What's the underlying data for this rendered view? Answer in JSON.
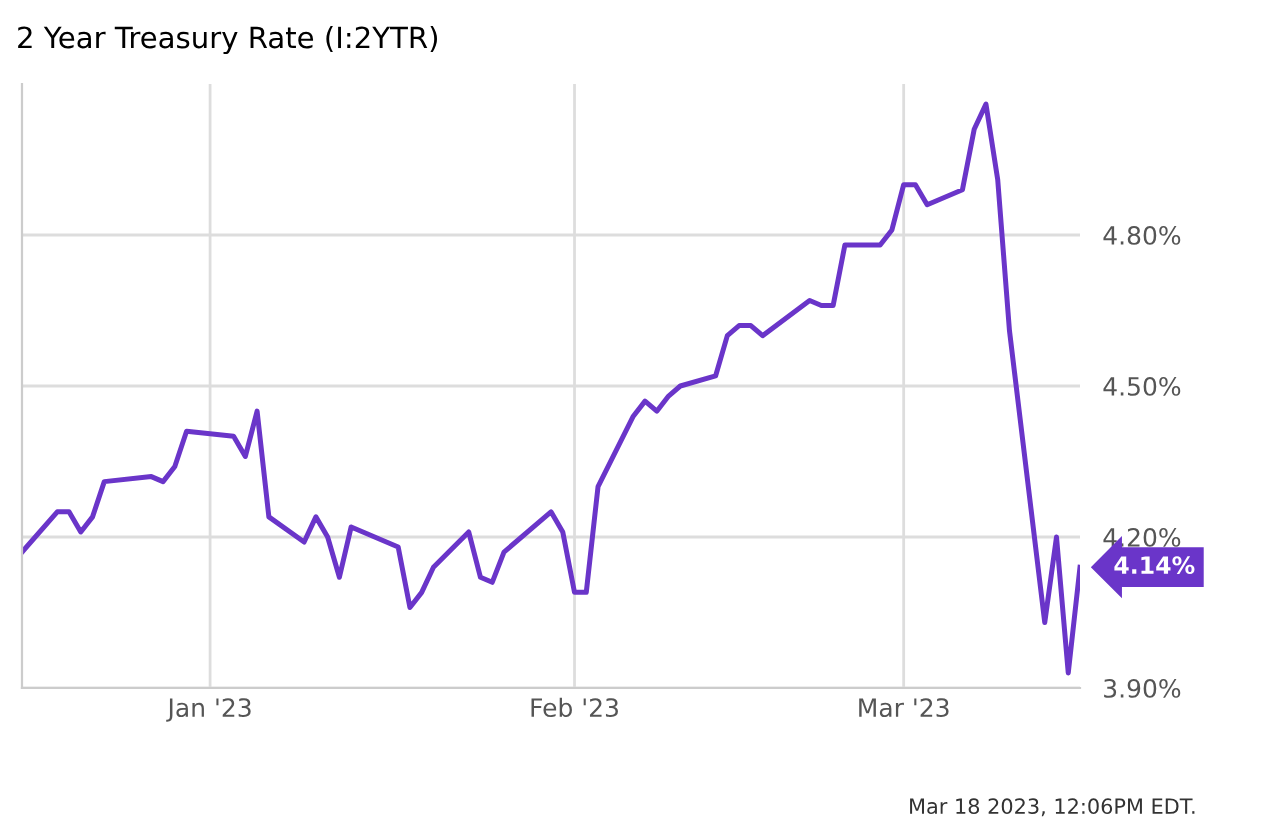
{
  "chart_data": {
    "type": "line",
    "title": "2 Year Treasury Rate (I:2YTR)",
    "x": [
      "2022-12-16",
      "2022-12-19",
      "2022-12-20",
      "2022-12-21",
      "2022-12-22",
      "2022-12-23",
      "2022-12-27",
      "2022-12-28",
      "2022-12-29",
      "2022-12-30",
      "2023-01-03",
      "2023-01-04",
      "2023-01-05",
      "2023-01-06",
      "2023-01-09",
      "2023-01-10",
      "2023-01-11",
      "2023-01-12",
      "2023-01-13",
      "2023-01-17",
      "2023-01-18",
      "2023-01-19",
      "2023-01-20",
      "2023-01-23",
      "2023-01-24",
      "2023-01-25",
      "2023-01-26",
      "2023-01-30",
      "2023-01-31",
      "2023-02-01",
      "2023-02-02",
      "2023-02-03",
      "2023-02-06",
      "2023-02-07",
      "2023-02-08",
      "2023-02-09",
      "2023-02-10",
      "2023-02-13",
      "2023-02-14",
      "2023-02-15",
      "2023-02-16",
      "2023-02-17",
      "2023-02-21",
      "2023-02-22",
      "2023-02-23",
      "2023-02-24",
      "2023-02-27",
      "2023-02-28",
      "2023-03-01",
      "2023-03-02",
      "2023-03-03",
      "2023-03-06",
      "2023-03-07",
      "2023-03-08",
      "2023-03-09",
      "2023-03-10",
      "2023-03-13",
      "2023-03-14",
      "2023-03-15",
      "2023-03-16"
    ],
    "series": [
      {
        "color": "#6a35c9",
        "values": [
          4.17,
          4.25,
          4.25,
          4.21,
          4.24,
          4.31,
          4.32,
          4.31,
          4.34,
          4.41,
          4.4,
          4.36,
          4.45,
          4.24,
          4.19,
          4.24,
          4.2,
          4.12,
          4.22,
          4.18,
          4.06,
          4.09,
          4.14,
          4.21,
          4.12,
          4.11,
          4.17,
          4.25,
          4.21,
          4.09,
          4.09,
          4.3,
          4.44,
          4.47,
          4.45,
          4.48,
          4.5,
          4.52,
          4.6,
          4.62,
          4.62,
          4.6,
          4.67,
          4.66,
          4.66,
          4.78,
          4.78,
          4.81,
          4.9,
          4.9,
          4.86,
          4.89,
          5.01,
          5.06,
          4.91,
          4.61,
          4.03,
          4.2,
          3.93,
          4.14
        ]
      }
    ],
    "xlim": [
      "2022-12-16",
      "2023-03-16"
    ],
    "xticks": [
      {
        "value": "2023-01-01",
        "label": "Jan '23"
      },
      {
        "value": "2023-02-01",
        "label": "Feb '23"
      },
      {
        "value": "2023-03-01",
        "label": "Mar '23"
      }
    ],
    "ylim": [
      3.9,
      5.1
    ],
    "yticks": [
      {
        "value": 3.9,
        "label": "3.90%"
      },
      {
        "value": 4.2,
        "label": "4.20%"
      },
      {
        "value": 4.5,
        "label": "4.50%"
      },
      {
        "value": 4.8,
        "label": "4.80%"
      }
    ],
    "grid": true,
    "marker": "none",
    "line_style": "solid",
    "legend": false,
    "annotations": [
      {
        "text": "4.14%",
        "x": "2023-03-16",
        "y": 4.14
      },
      "Mar 18 2023, 12:06PM EDT."
    ]
  }
}
